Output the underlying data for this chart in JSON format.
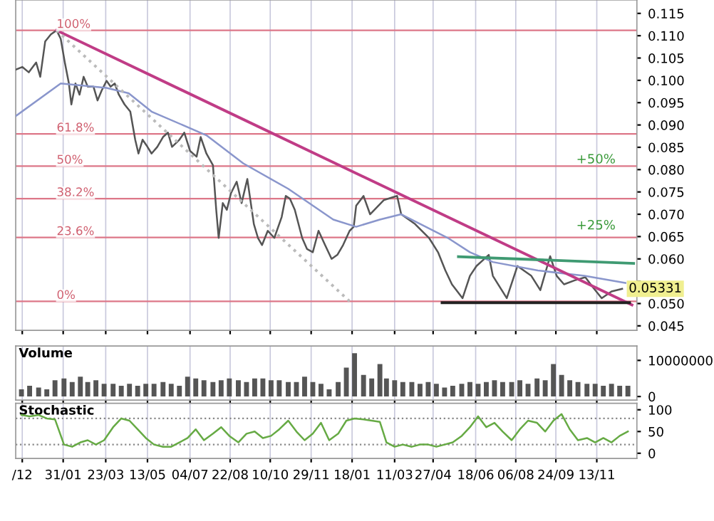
{
  "chart_data": [
    {
      "type": "line",
      "xlim": [
        "2011-12-04",
        "2014-01-01"
      ],
      "ylim": [
        0.044,
        0.118
      ],
      "yticks": [
        {
          "value": 0.045,
          "label": "0.045"
        },
        {
          "value": 0.05,
          "label": "0.050"
        },
        {
          "value": 0.055,
          "label": null
        },
        {
          "value": 0.06,
          "label": "0.060"
        },
        {
          "value": 0.065,
          "label": "0.065"
        },
        {
          "value": 0.07,
          "label": "0.070"
        },
        {
          "value": 0.075,
          "label": "0.075"
        },
        {
          "value": 0.08,
          "label": "0.080"
        },
        {
          "value": 0.085,
          "label": "0.085"
        },
        {
          "value": 0.09,
          "label": "0.090"
        },
        {
          "value": 0.095,
          "label": "0.095"
        },
        {
          "value": 0.1,
          "label": "0.100"
        },
        {
          "value": 0.105,
          "label": "0.105"
        },
        {
          "value": 0.11,
          "label": "0.110"
        },
        {
          "value": 0.115,
          "label": "0.115"
        }
      ],
      "xticks": [
        {
          "value": "2011-12-12",
          "label": null
        },
        {
          "value": "2012-01-31",
          "label": null
        },
        {
          "value": "2012-03-23",
          "label": null
        },
        {
          "value": "2012-05-13",
          "label": null
        },
        {
          "value": "2012-07-04",
          "label": null
        },
        {
          "value": "2012-08-22",
          "label": null
        },
        {
          "value": "2012-10-10",
          "label": null
        },
        {
          "value": "2012-11-29",
          "label": null
        },
        {
          "value": "2013-01-18",
          "label": null
        },
        {
          "value": "2013-03-11",
          "label": null
        },
        {
          "value": "2013-04-27",
          "label": null
        },
        {
          "value": "2013-06-18",
          "label": null
        },
        {
          "value": "2013-08-06",
          "label": null
        },
        {
          "value": "2013-09-24",
          "label": null
        },
        {
          "value": "2013-11-13",
          "label": null
        }
      ],
      "tick_labels": "y",
      "grid": "x",
      "legend": false,
      "marker": "none",
      "series": [
        {
          "color": "#555555",
          "line_style": "solid",
          "x": [
            "2011-12-04",
            "2011-12-12",
            "2011-12-20",
            "2011-12-29",
            "2012-01-03",
            "2012-01-09",
            "2012-01-16",
            "2012-01-23",
            "2012-01-28",
            "2012-02-02",
            "2012-02-07",
            "2012-02-10",
            "2012-02-15",
            "2012-02-20",
            "2012-02-25",
            "2012-03-01",
            "2012-03-08",
            "2012-03-13",
            "2012-03-18",
            "2012-03-24",
            "2012-03-29",
            "2012-04-03",
            "2012-04-08",
            "2012-04-15",
            "2012-04-22",
            "2012-04-28",
            "2012-05-02",
            "2012-05-07",
            "2012-05-13",
            "2012-05-18",
            "2012-05-25",
            "2012-06-01",
            "2012-06-07",
            "2012-06-12",
            "2012-06-21",
            "2012-06-27",
            "2012-07-04",
            "2012-07-12",
            "2012-07-17",
            "2012-07-24",
            "2012-08-01",
            "2012-08-05",
            "2012-08-08",
            "2012-08-13",
            "2012-08-18",
            "2012-08-23",
            "2012-08-30",
            "2012-09-05",
            "2012-09-12",
            "2012-09-20",
            "2012-09-25",
            "2012-09-30",
            "2012-10-07",
            "2012-10-15",
            "2012-10-24",
            "2012-10-29",
            "2012-11-03",
            "2012-11-09",
            "2012-11-18",
            "2012-11-24",
            "2012-12-01",
            "2012-12-08",
            "2012-12-16",
            "2012-12-24",
            "2012-12-31",
            "2013-01-07",
            "2013-01-15",
            "2013-01-20",
            "2013-01-23",
            "2013-02-01",
            "2013-02-09",
            "2013-02-26",
            "2013-03-14",
            "2013-03-19",
            "2013-04-05",
            "2013-04-22",
            "2013-05-03",
            "2013-05-12",
            "2013-05-20",
            "2013-06-02",
            "2013-06-11",
            "2013-06-19",
            "2013-07-04",
            "2013-07-09",
            "2013-07-26",
            "2013-08-08",
            "2013-08-25",
            "2013-09-05",
            "2013-09-17",
            "2013-09-25",
            "2013-10-04",
            "2013-10-17",
            "2013-10-30",
            "2013-11-08",
            "2013-11-19",
            "2013-12-01",
            "2013-12-14"
          ],
          "values": [
            0.1024,
            0.103,
            0.1018,
            0.104,
            0.1008,
            0.1087,
            0.1103,
            0.1112,
            0.1093,
            0.104,
            0.0993,
            0.0946,
            0.0993,
            0.0968,
            0.1008,
            0.0986,
            0.0986,
            0.0955,
            0.0977,
            0.0999,
            0.0986,
            0.0993,
            0.0968,
            0.0946,
            0.093,
            0.0867,
            0.0836,
            0.0867,
            0.0851,
            0.0836,
            0.0851,
            0.0873,
            0.0883,
            0.0851,
            0.0867,
            0.0883,
            0.0842,
            0.0829,
            0.0873,
            0.0836,
            0.081,
            0.071,
            0.0647,
            0.0725,
            0.071,
            0.0747,
            0.0773,
            0.0725,
            0.0779,
            0.0678,
            0.0647,
            0.0631,
            0.0663,
            0.0647,
            0.0694,
            0.0741,
            0.0735,
            0.071,
            0.0647,
            0.0622,
            0.0615,
            0.0663,
            0.0631,
            0.06,
            0.0609,
            0.0631,
            0.0663,
            0.0672,
            0.0719,
            0.0741,
            0.07,
            0.0732,
            0.0741,
            0.07,
            0.0678,
            0.0647,
            0.0615,
            0.0574,
            0.0543,
            0.0512,
            0.0562,
            0.0584,
            0.0609,
            0.0562,
            0.0512,
            0.0584,
            0.0562,
            0.053,
            0.0606,
            0.0562,
            0.0543,
            0.0552,
            0.0559,
            0.0537,
            0.0512,
            0.0527,
            0.0533
          ]
        },
        {
          "color": "#8a96cc",
          "line_style": "solid",
          "x": [
            "2011-12-04",
            "2012-01-28",
            "2012-03-24",
            "2012-04-20",
            "2012-05-18",
            "2012-07-24",
            "2012-09-07",
            "2012-11-01",
            "2012-12-26",
            "2013-01-23",
            "2013-02-21",
            "2013-03-19",
            "2013-05-15",
            "2013-06-11",
            "2013-07-09",
            "2013-09-02",
            "2013-10-29",
            "2013-12-18"
          ],
          "values": [
            0.092,
            0.0993,
            0.0983,
            0.0971,
            0.093,
            0.0877,
            0.0814,
            0.0757,
            0.0688,
            0.0672,
            0.0688,
            0.07,
            0.0647,
            0.0615,
            0.0593,
            0.0574,
            0.0562,
            0.0546
          ]
        },
        {
          "color": "#c03c86",
          "line_style": "solid",
          "x": [
            "2012-01-23",
            "2013-12-26"
          ],
          "values": [
            0.1112,
            0.0497
          ]
        },
        {
          "color": "#3f9a72",
          "line_style": "solid",
          "x": [
            "2013-05-28",
            "2013-12-28"
          ],
          "values": [
            0.0605,
            0.059
          ]
        },
        {
          "color": "#222222",
          "line_style": "solid",
          "x": [
            "2013-05-08",
            "2013-12-23"
          ],
          "values": [
            0.0502,
            0.0502
          ]
        },
        {
          "color": "#bbbbbb",
          "line_style": "dotted",
          "x": [
            "2012-01-23",
            "2013-01-15"
          ],
          "values": [
            0.1112,
            0.0505
          ]
        }
      ],
      "ref_lines": [
        {
          "axis": "y",
          "value": 0.1112,
          "color": "#dd7788"
        },
        {
          "axis": "y",
          "value": 0.088,
          "color": "#dd7788"
        },
        {
          "axis": "y",
          "value": 0.0808,
          "color": "#dd7788"
        },
        {
          "axis": "y",
          "value": 0.0735,
          "color": "#dd7788"
        },
        {
          "axis": "y",
          "value": 0.0648,
          "color": "#dd7788"
        },
        {
          "axis": "y",
          "value": 0.0505,
          "color": "#dd7788"
        }
      ],
      "annotations": [
        {
          "text": "100%",
          "x": "2012-01-23",
          "y": 0.1112
        },
        {
          "text": "61.8%",
          "x": "2012-01-23",
          "y": 0.088
        },
        {
          "text": "50%",
          "x": "2012-01-23",
          "y": 0.0808
        },
        {
          "text": "38.2%",
          "x": "2012-01-23",
          "y": 0.0735
        },
        {
          "text": "23.6%",
          "x": "2012-01-23",
          "y": 0.0648
        },
        {
          "text": "0%",
          "x": "2012-01-23",
          "y": 0.0505
        },
        {
          "text": "+50%",
          "x": "2013-12-06",
          "y": 0.0808
        },
        {
          "text": "+25%",
          "x": "2013-12-06",
          "y": 0.066
        },
        {
          "text": "0.05331",
          "x": "2013-12-14",
          "y": 0.0533
        }
      ]
    },
    {
      "type": "bar",
      "title": "Volume",
      "xlim": [
        "2011-12-04",
        "2014-01-01"
      ],
      "ylim": [
        -1000000,
        14000000
      ],
      "yticks": [
        0,
        10000000
      ],
      "xticks": [
        {
          "value": "2011-12-12",
          "label": null
        },
        {
          "value": "2012-01-31",
          "label": null
        },
        {
          "value": "2012-03-23",
          "label": null
        },
        {
          "value": "2012-05-13",
          "label": null
        },
        {
          "value": "2012-07-04",
          "label": null
        },
        {
          "value": "2012-08-22",
          "label": null
        },
        {
          "value": "2012-10-10",
          "label": null
        },
        {
          "value": "2012-11-29",
          "label": null
        },
        {
          "value": "2013-01-18",
          "label": null
        },
        {
          "value": "2013-03-11",
          "label": null
        },
        {
          "value": "2013-04-27",
          "label": null
        },
        {
          "value": "2013-06-18",
          "label": null
        },
        {
          "value": "2013-08-06",
          "label": null
        },
        {
          "value": "2013-09-24",
          "label": null
        },
        {
          "value": "2013-11-13",
          "label": null
        }
      ],
      "tick_labels": "y",
      "grid": "x",
      "color": "#555555",
      "x": [
        "2011-12-11",
        "2011-12-21",
        "2012-01-01",
        "2012-01-11",
        "2012-01-21",
        "2012-02-01",
        "2012-02-11",
        "2012-02-21",
        "2012-03-01",
        "2012-03-11",
        "2012-03-21",
        "2012-04-01",
        "2012-04-11",
        "2012-04-21",
        "2012-05-01",
        "2012-05-11",
        "2012-05-21",
        "2012-06-01",
        "2012-06-11",
        "2012-06-21",
        "2012-07-01",
        "2012-07-11",
        "2012-07-21",
        "2012-08-01",
        "2012-08-11",
        "2012-08-21",
        "2012-09-01",
        "2012-09-11",
        "2012-09-21",
        "2012-10-01",
        "2012-10-11",
        "2012-10-21",
        "2012-11-01",
        "2012-11-11",
        "2012-11-21",
        "2012-12-01",
        "2012-12-11",
        "2012-12-21",
        "2013-01-01",
        "2013-01-11",
        "2013-01-21",
        "2013-02-01",
        "2013-02-11",
        "2013-02-21",
        "2013-03-01",
        "2013-03-11",
        "2013-03-21",
        "2013-04-01",
        "2013-04-11",
        "2013-04-21",
        "2013-05-01",
        "2013-05-11",
        "2013-05-21",
        "2013-06-01",
        "2013-06-11",
        "2013-06-21",
        "2013-07-01",
        "2013-07-11",
        "2013-07-21",
        "2013-08-01",
        "2013-08-11",
        "2013-08-21",
        "2013-09-01",
        "2013-09-11",
        "2013-09-21",
        "2013-10-01",
        "2013-10-11",
        "2013-10-21",
        "2013-11-01",
        "2013-11-11",
        "2013-11-21",
        "2013-12-01",
        "2013-12-11",
        "2013-12-21"
      ],
      "values": [
        2000000,
        3000000,
        2500000,
        2000000,
        4500000,
        5000000,
        4000000,
        5500000,
        4000000,
        4500000,
        3500000,
        3500000,
        3000000,
        3500000,
        3000000,
        3500000,
        3500000,
        4000000,
        3500000,
        3000000,
        5500000,
        5000000,
        4500000,
        4000000,
        4500000,
        5000000,
        4500000,
        4000000,
        5000000,
        5000000,
        4500000,
        4500000,
        4000000,
        4000000,
        5500000,
        4000000,
        3500000,
        2000000,
        4000000,
        8000000,
        12000000,
        6000000,
        5000000,
        9000000,
        5000000,
        4500000,
        4000000,
        4000000,
        3500000,
        4000000,
        3500000,
        2500000,
        3000000,
        3500000,
        4000000,
        3500000,
        4000000,
        4500000,
        4000000,
        4000000,
        4500000,
        3500000,
        5000000,
        4500000,
        9000000,
        6000000,
        4500000,
        4000000,
        3500000,
        3500000,
        3000000,
        3500000,
        3000000,
        3000000
      ]
    },
    {
      "type": "line",
      "title": "Stochastic",
      "xlim": [
        "2011-12-04",
        "2014-01-01"
      ],
      "ylim": [
        -12,
        115
      ],
      "yticks": [
        0,
        50,
        100
      ],
      "xticks": [
        {
          "value": "2011-12-12",
          "label": "/12"
        },
        {
          "value": "2012-01-31",
          "label": "31/01"
        },
        {
          "value": "2012-03-23",
          "label": "23/03"
        },
        {
          "value": "2012-05-13",
          "label": "13/05"
        },
        {
          "value": "2012-07-04",
          "label": "04/07"
        },
        {
          "value": "2012-08-22",
          "label": "22/08"
        },
        {
          "value": "2012-10-10",
          "label": "10/10"
        },
        {
          "value": "2012-11-29",
          "label": "29/11"
        },
        {
          "value": "2013-01-18",
          "label": "18/01"
        },
        {
          "value": "2013-03-11",
          "label": "11/03"
        },
        {
          "value": "2013-04-27",
          "label": "27/04"
        },
        {
          "value": "2013-06-18",
          "label": "18/06"
        },
        {
          "value": "2013-08-06",
          "label": "06/08"
        },
        {
          "value": "2013-09-24",
          "label": "24/09"
        },
        {
          "value": "2013-11-13",
          "label": "13/11"
        }
      ],
      "grid": "x",
      "marker": "none",
      "line_style": "solid",
      "color": "#66aa44",
      "x": [
        "2011-12-11",
        "2011-12-21",
        "2012-01-01",
        "2012-01-11",
        "2012-01-21",
        "2012-02-01",
        "2012-02-11",
        "2012-02-21",
        "2012-03-01",
        "2012-03-11",
        "2012-03-21",
        "2012-04-01",
        "2012-04-11",
        "2012-04-21",
        "2012-05-01",
        "2012-05-11",
        "2012-05-21",
        "2012-06-01",
        "2012-06-11",
        "2012-06-21",
        "2012-07-01",
        "2012-07-11",
        "2012-07-21",
        "2012-08-01",
        "2012-08-11",
        "2012-08-21",
        "2012-09-01",
        "2012-09-11",
        "2012-09-21",
        "2012-10-01",
        "2012-10-11",
        "2012-10-21",
        "2012-11-01",
        "2012-11-11",
        "2012-11-21",
        "2012-12-01",
        "2012-12-11",
        "2012-12-21",
        "2013-01-01",
        "2013-01-11",
        "2013-01-21",
        "2013-02-01",
        "2013-02-11",
        "2013-02-21",
        "2013-03-01",
        "2013-03-11",
        "2013-03-21",
        "2013-04-01",
        "2013-04-11",
        "2013-04-21",
        "2013-05-01",
        "2013-05-11",
        "2013-05-21",
        "2013-06-01",
        "2013-06-11",
        "2013-06-21",
        "2013-07-01",
        "2013-07-11",
        "2013-07-21",
        "2013-08-01",
        "2013-08-11",
        "2013-08-21",
        "2013-09-01",
        "2013-09-11",
        "2013-09-21",
        "2013-10-01",
        "2013-10-11",
        "2013-10-21",
        "2013-11-01",
        "2013-11-11",
        "2013-11-21",
        "2013-12-01",
        "2013-12-11",
        "2013-12-21"
      ],
      "values": [
        88,
        85,
        88,
        80,
        78,
        20,
        15,
        25,
        30,
        20,
        30,
        60,
        80,
        75,
        55,
        35,
        20,
        15,
        15,
        25,
        35,
        55,
        30,
        45,
        60,
        40,
        25,
        45,
        50,
        35,
        40,
        55,
        75,
        50,
        30,
        45,
        70,
        30,
        45,
        75,
        80,
        78,
        75,
        72,
        25,
        15,
        20,
        15,
        20,
        20,
        15,
        20,
        25,
        40,
        60,
        85,
        60,
        70,
        50,
        30,
        55,
        75,
        70,
        50,
        75,
        90,
        55,
        30,
        35,
        25,
        35,
        25,
        40,
        50
      ],
      "ref_lines": [
        {
          "axis": "y",
          "value": 20,
          "line_style": "dotted",
          "color": "#888888"
        },
        {
          "axis": "y",
          "value": 80,
          "line_style": "dotted",
          "color": "#888888"
        }
      ]
    }
  ]
}
